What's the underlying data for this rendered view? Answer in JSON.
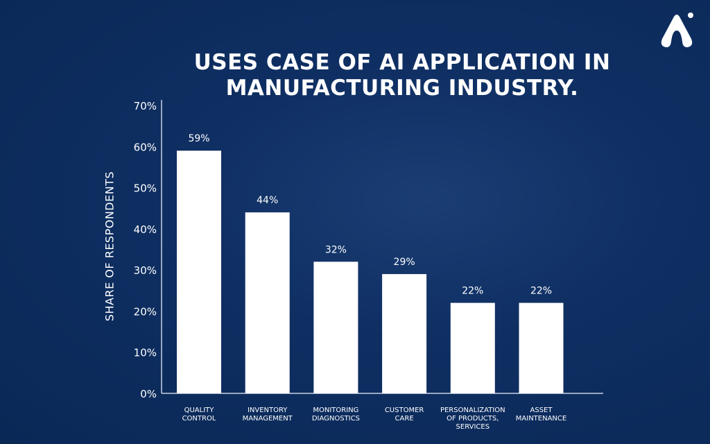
{
  "chart_data": {
    "type": "bar",
    "title": "USES CASE OF AI APPLICATION IN MANUFACTURING INDUSTRY.",
    "title_lines": [
      "USES CASE OF AI APPLICATION IN",
      "MANUFACTURING INDUSTRY."
    ],
    "xlabel": "",
    "ylabel": "SHARE OF RESPONDENTS",
    "ylim": [
      0,
      70
    ],
    "yticks": [
      "0%",
      "10%",
      "20%",
      "30%",
      "40%",
      "50%",
      "60%",
      "70%"
    ],
    "categories": [
      [
        "QUALITY",
        "CONTROL"
      ],
      [
        "INVENTORY",
        "MANAGEMENT"
      ],
      [
        "MONITORING",
        "DIAGNOSTICS"
      ],
      [
        "CUSTOMER",
        "CARE"
      ],
      [
        "PERSONALIZATION",
        "OF PRODUCTS,",
        "SERVICES"
      ],
      [
        "ASSET",
        "MAINTENANCE"
      ]
    ],
    "values": [
      59,
      44,
      32,
      29,
      22,
      22
    ],
    "data_labels": [
      "59%",
      "44%",
      "32%",
      "29%",
      "22%",
      "22%"
    ],
    "grid": false,
    "bar_color": "#ffffff",
    "background_color": "#0f2f63"
  }
}
